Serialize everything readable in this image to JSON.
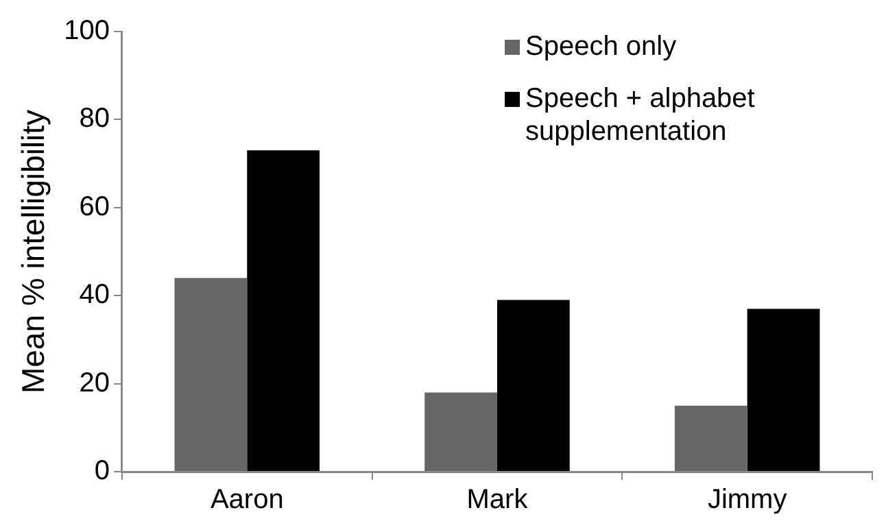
{
  "chart_data": {
    "type": "bar",
    "ylabel": "Mean % intelligibility",
    "categories": [
      "Aaron",
      "Mark",
      "Jimmy"
    ],
    "series": [
      {
        "name": "Speech only",
        "color": "#666666",
        "values": [
          44,
          18,
          15
        ]
      },
      {
        "name": "Speech + alphabet supplementation",
        "color": "#000000",
        "values": [
          73,
          39,
          37
        ]
      }
    ],
    "ylim": [
      0,
      100
    ],
    "yticks": [
      0,
      20,
      40,
      60,
      80,
      100
    ],
    "grid": false,
    "legend": "top right"
  }
}
